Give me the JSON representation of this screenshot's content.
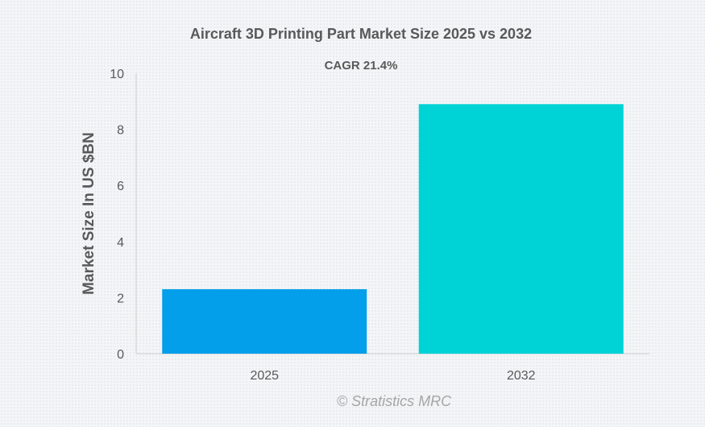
{
  "chart_data": {
    "type": "bar",
    "title": "Aircraft 3D Printing Part Market Size 2025 vs 2032",
    "subtitle": "CAGR 21.4%",
    "categories": [
      "2025",
      "2032"
    ],
    "values": [
      2.3,
      8.9
    ],
    "colors": [
      "#039fea",
      "#00d3d6"
    ],
    "xlabel": "",
    "ylabel": "Market Size In US $BN",
    "ylim": [
      0,
      10
    ],
    "yticks": [
      0,
      2,
      4,
      6,
      8,
      10
    ],
    "grid": false,
    "credit": "© Stratistics MRC"
  }
}
